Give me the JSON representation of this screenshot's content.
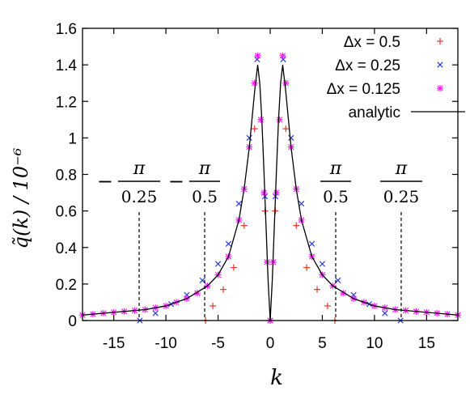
{
  "chart_data": {
    "type": "scatter",
    "title": "",
    "xlabel": "k",
    "ylabel": "q̃(k) / 10⁻⁶",
    "xlim": [
      -18,
      18
    ],
    "ylim": [
      0,
      1.6
    ],
    "xticks": [
      "-15",
      "-10",
      "-5",
      "0",
      "5",
      "10",
      "15"
    ],
    "yticks": [
      "0",
      "0.2",
      "0.4",
      "0.6",
      "0.8",
      "1",
      "1.2",
      "1.4",
      "1.6"
    ],
    "grid": false,
    "legend_position": "top-right",
    "series": [
      {
        "name": "Δx = 0.5",
        "marker": "plus",
        "color": "#e8352a",
        "x": [
          -6.2,
          -5.5,
          -4.5,
          -3.5,
          -2.5,
          -1.5,
          -0.5,
          0,
          0.5,
          1.5,
          2.5,
          3.5,
          4.5,
          5.5,
          6.2
        ],
        "y": [
          0.0,
          0.08,
          0.17,
          0.29,
          0.52,
          1.05,
          0.6,
          0.0,
          0.6,
          1.05,
          0.52,
          0.29,
          0.17,
          0.08,
          0.0
        ]
      },
      {
        "name": "Δx = 0.25",
        "marker": "cross",
        "color": "#2a3bd6",
        "x": [
          -12.5,
          -11,
          -9.5,
          -8,
          -6.5,
          -5,
          -4,
          -3,
          -2,
          -1.25,
          -0.5,
          0,
          0.5,
          1.25,
          2,
          3,
          4,
          5,
          6.5,
          8,
          9.5,
          11,
          12.5
        ],
        "y": [
          0.0,
          0.04,
          0.09,
          0.14,
          0.22,
          0.31,
          0.42,
          0.64,
          1.0,
          1.43,
          0.68,
          0.0,
          0.68,
          1.43,
          1.0,
          0.64,
          0.42,
          0.31,
          0.22,
          0.14,
          0.09,
          0.04,
          0.0
        ]
      },
      {
        "name": "Δx = 0.125",
        "marker": "star",
        "color": "#ff19ff",
        "x": [
          -18,
          -17,
          -16,
          -15,
          -14,
          -13,
          -12,
          -11,
          -10,
          -9,
          -8,
          -7,
          -6,
          -5,
          -4,
          -3,
          -2.5,
          -2,
          -1.5,
          -1.2,
          -0.9,
          -0.6,
          -0.3,
          0,
          0.3,
          0.6,
          0.9,
          1.2,
          1.5,
          2,
          2.5,
          3,
          4,
          5,
          6,
          7,
          8,
          9,
          10,
          11,
          12,
          13,
          14,
          15,
          16,
          17,
          18
        ],
        "y": [
          0.03,
          0.035,
          0.04,
          0.045,
          0.05,
          0.055,
          0.06,
          0.07,
          0.08,
          0.1,
          0.12,
          0.15,
          0.19,
          0.25,
          0.35,
          0.55,
          0.72,
          0.95,
          1.3,
          1.45,
          1.1,
          0.7,
          0.32,
          0.0,
          0.32,
          0.7,
          1.1,
          1.45,
          1.3,
          0.95,
          0.72,
          0.55,
          0.35,
          0.25,
          0.19,
          0.15,
          0.12,
          0.1,
          0.08,
          0.07,
          0.06,
          0.055,
          0.05,
          0.045,
          0.04,
          0.035,
          0.03
        ]
      },
      {
        "name": "analytic",
        "marker": "line",
        "color": "#000000",
        "x": [
          -18,
          -16,
          -14,
          -12,
          -10,
          -8,
          -6,
          -5,
          -4,
          -3,
          -2.5,
          -2,
          -1.5,
          -1.2,
          -1,
          -0.8,
          -0.6,
          -0.4,
          -0.2,
          0,
          0.2,
          0.4,
          0.6,
          0.8,
          1,
          1.2,
          1.5,
          2,
          2.5,
          3,
          4,
          5,
          6,
          8,
          10,
          12,
          14,
          16,
          18
        ],
        "y": [
          0.03,
          0.04,
          0.05,
          0.06,
          0.08,
          0.12,
          0.19,
          0.25,
          0.35,
          0.55,
          0.72,
          0.95,
          1.25,
          1.4,
          1.3,
          1.1,
          0.82,
          0.52,
          0.22,
          0.0,
          0.22,
          0.52,
          0.82,
          1.1,
          1.3,
          1.4,
          1.25,
          0.95,
          0.72,
          0.55,
          0.35,
          0.25,
          0.19,
          0.12,
          0.08,
          0.06,
          0.05,
          0.04,
          0.03
        ]
      }
    ],
    "annotations": [
      {
        "sign": "−",
        "numerator": "π",
        "denominator": "0.25",
        "x": -12.566
      },
      {
        "sign": "−",
        "numerator": "π",
        "denominator": "0.5",
        "x": -6.283
      },
      {
        "sign": "",
        "numerator": "π",
        "denominator": "0.5",
        "x": 6.283
      },
      {
        "sign": "",
        "numerator": "π",
        "denominator": "0.25",
        "x": 12.566
      }
    ]
  }
}
